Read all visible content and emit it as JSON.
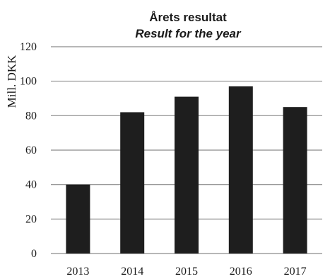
{
  "chart_data": {
    "type": "bar",
    "title": "Årets resultat",
    "subtitle": "Result for the year",
    "xlabel": "",
    "ylabel": "Mill. DKK",
    "categories": [
      "2013",
      "2014",
      "2015",
      "2016",
      "2017"
    ],
    "values": [
      40,
      82,
      91,
      97,
      85
    ],
    "ylim": [
      0,
      120
    ],
    "yticks": [
      0,
      20,
      40,
      60,
      80,
      100,
      120
    ],
    "grid": true,
    "legend": "none",
    "bar_color": "#1e1e1e",
    "grid_color": "#8c8c8c"
  }
}
